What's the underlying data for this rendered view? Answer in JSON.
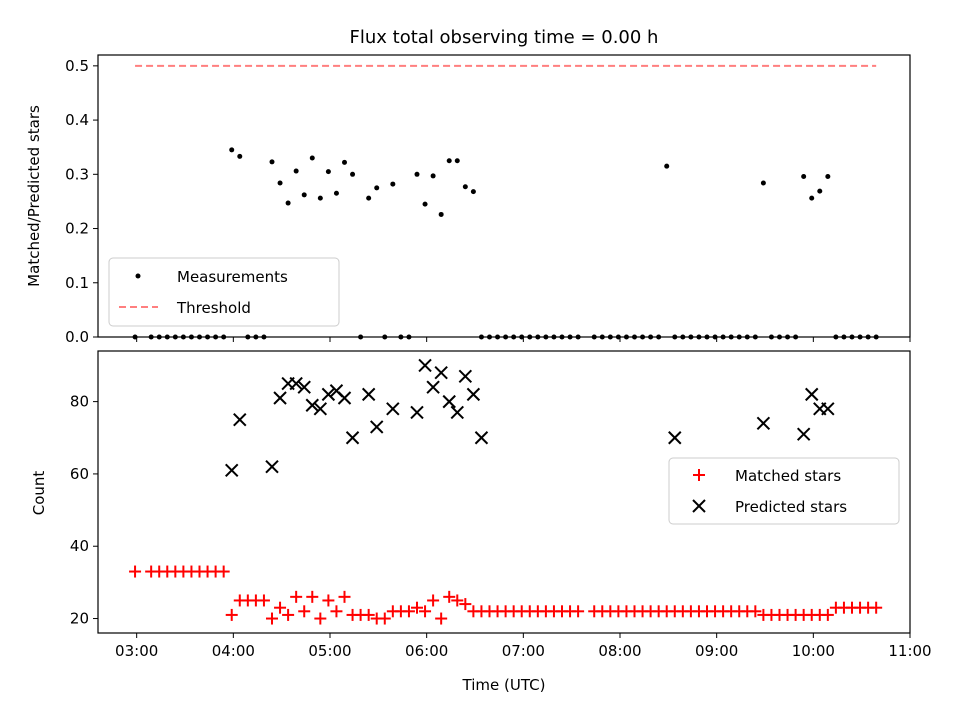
{
  "chart_data": [
    {
      "type": "scatter",
      "title": "Flux total observing time = 0.00 h",
      "xlabel": "",
      "ylabel": "Matched/Predicted stars",
      "xlim": [
        "02:36",
        "11:00"
      ],
      "ylim": [
        0,
        0.52
      ],
      "x_tick_labels": [
        "03:00",
        "04:00",
        "05:00",
        "06:00",
        "07:00",
        "08:00",
        "09:00",
        "10:00",
        "11:00"
      ],
      "y_ticks": [
        0.0,
        0.1,
        0.2,
        0.3,
        0.4,
        0.5
      ],
      "y_tick_labels": [
        "0.0",
        "0.1",
        "0.2",
        "0.3",
        "0.4",
        "0.5"
      ],
      "legend_position": "lower-left",
      "series": [
        {
          "name": "Measurements",
          "kind": "scatter",
          "color": "#000000",
          "x": [
            "02:59",
            "03:09",
            "03:14",
            "03:19",
            "03:24",
            "03:29",
            "03:34",
            "03:39",
            "03:44",
            "03:49",
            "03:54",
            "03:59",
            "04:04",
            "04:09",
            "04:14",
            "04:19",
            "04:24",
            "04:29",
            "04:34",
            "04:39",
            "04:44",
            "04:49",
            "04:54",
            "04:59",
            "05:04",
            "05:09",
            "05:14",
            "05:19",
            "05:24",
            "05:29",
            "05:34",
            "05:39",
            "05:44",
            "05:49",
            "05:54",
            "05:59",
            "06:04",
            "06:09",
            "06:14",
            "06:19",
            "06:24",
            "06:29",
            "06:34",
            "06:39",
            "06:44",
            "06:49",
            "06:54",
            "06:59",
            "07:04",
            "07:09",
            "07:14",
            "07:19",
            "07:24",
            "07:29",
            "07:34",
            "07:44",
            "07:49",
            "07:54",
            "07:59",
            "08:04",
            "08:09",
            "08:14",
            "08:19",
            "08:24",
            "08:29",
            "08:34",
            "08:39",
            "08:44",
            "08:49",
            "08:54",
            "08:59",
            "09:04",
            "09:09",
            "09:14",
            "09:19",
            "09:24",
            "09:29",
            "09:34",
            "09:39",
            "09:44",
            "09:49",
            "09:54",
            "09:59",
            "10:04",
            "10:09",
            "10:14",
            "10:19",
            "10:24",
            "10:29",
            "10:34",
            "10:39"
          ],
          "y": [
            0.0,
            0.0,
            0.0,
            0.0,
            0.0,
            0.0,
            0.0,
            0.0,
            0.0,
            0.0,
            0.0,
            0.345,
            0.333,
            0.0,
            0.0,
            0.0,
            0.323,
            0.284,
            0.247,
            0.306,
            0.262,
            0.33,
            0.256,
            0.305,
            0.265,
            0.322,
            0.3,
            0.0,
            0.256,
            0.275,
            0.0,
            0.282,
            0.0,
            0.0,
            0.3,
            0.245,
            0.297,
            0.226,
            0.325,
            0.325,
            0.277,
            0.268,
            0.0,
            0.0,
            0.0,
            0.0,
            0.0,
            0.0,
            0.0,
            0.0,
            0.0,
            0.0,
            0.0,
            0.0,
            0.0,
            0.0,
            0.0,
            0.0,
            0.0,
            0.0,
            0.0,
            0.0,
            0.0,
            0.0,
            0.315,
            0.0,
            0.0,
            0.0,
            0.0,
            0.0,
            0.0,
            0.0,
            0.0,
            0.0,
            0.0,
            0.0,
            0.284,
            0.0,
            0.0,
            0.0,
            0.0,
            0.296,
            0.256,
            0.269,
            0.296,
            0.0,
            0.0,
            0.0,
            0.0,
            0.0,
            0.0
          ]
        },
        {
          "name": "Threshold",
          "kind": "line",
          "style": "dashed",
          "color": "#ff7f7f",
          "x": [
            "02:59",
            "10:39"
          ],
          "y": [
            0.5,
            0.5
          ]
        }
      ]
    },
    {
      "type": "scatter",
      "title": "",
      "xlabel": "Time (UTC)",
      "ylabel": "Count",
      "xlim": [
        "02:36",
        "11:00"
      ],
      "ylim": [
        16,
        94
      ],
      "x_tick_labels": [
        "03:00",
        "04:00",
        "05:00",
        "06:00",
        "07:00",
        "08:00",
        "09:00",
        "10:00",
        "11:00"
      ],
      "y_ticks": [
        20,
        40,
        60,
        80
      ],
      "y_tick_labels": [
        "20",
        "40",
        "60",
        "80"
      ],
      "legend_position": "center-right",
      "series": [
        {
          "name": "Matched stars",
          "marker": "plus",
          "color": "#ff0000",
          "x": [
            "02:59",
            "03:09",
            "03:14",
            "03:19",
            "03:24",
            "03:29",
            "03:34",
            "03:39",
            "03:44",
            "03:49",
            "03:54",
            "03:59",
            "04:04",
            "04:09",
            "04:14",
            "04:19",
            "04:24",
            "04:29",
            "04:34",
            "04:39",
            "04:44",
            "04:49",
            "04:54",
            "04:59",
            "05:04",
            "05:09",
            "05:14",
            "05:19",
            "05:24",
            "05:29",
            "05:34",
            "05:39",
            "05:44",
            "05:49",
            "05:54",
            "05:59",
            "06:04",
            "06:09",
            "06:14",
            "06:19",
            "06:24",
            "06:29",
            "06:34",
            "06:39",
            "06:44",
            "06:49",
            "06:54",
            "06:59",
            "07:04",
            "07:09",
            "07:14",
            "07:19",
            "07:24",
            "07:29",
            "07:34",
            "07:44",
            "07:49",
            "07:54",
            "07:59",
            "08:04",
            "08:09",
            "08:14",
            "08:19",
            "08:24",
            "08:29",
            "08:34",
            "08:39",
            "08:44",
            "08:49",
            "08:54",
            "08:59",
            "09:04",
            "09:09",
            "09:14",
            "09:19",
            "09:24",
            "09:29",
            "09:34",
            "09:39",
            "09:44",
            "09:49",
            "09:54",
            "09:59",
            "10:04",
            "10:09",
            "10:14",
            "10:19",
            "10:24",
            "10:29",
            "10:34",
            "10:39"
          ],
          "y": [
            33,
            33,
            33,
            33,
            33,
            33,
            33,
            33,
            33,
            33,
            33,
            21,
            25,
            25,
            25,
            25,
            20,
            23,
            21,
            26,
            22,
            26,
            20,
            25,
            22,
            26,
            21,
            21,
            21,
            20,
            20,
            22,
            22,
            22,
            23,
            22,
            25,
            20,
            26,
            25,
            24,
            22,
            22,
            22,
            22,
            22,
            22,
            22,
            22,
            22,
            22,
            22,
            22,
            22,
            22,
            22,
            22,
            22,
            22,
            22,
            22,
            22,
            22,
            22,
            22,
            22,
            22,
            22,
            22,
            22,
            22,
            22,
            22,
            22,
            22,
            22,
            21,
            21,
            21,
            21,
            21,
            21,
            21,
            21,
            21,
            23,
            23,
            23,
            23,
            23,
            23
          ]
        },
        {
          "name": "Predicted stars",
          "marker": "cross",
          "color": "#000000",
          "x": [
            "03:59",
            "04:04",
            "04:24",
            "04:29",
            "04:34",
            "04:39",
            "04:44",
            "04:49",
            "04:54",
            "04:59",
            "05:04",
            "05:09",
            "05:14",
            "05:24",
            "05:29",
            "05:39",
            "05:54",
            "05:59",
            "06:04",
            "06:09",
            "06:14",
            "06:19",
            "06:24",
            "06:29",
            "06:34",
            "08:34",
            "09:29",
            "09:54",
            "09:59",
            "10:04",
            "10:09"
          ],
          "y": [
            61,
            75,
            62,
            81,
            85,
            85,
            84,
            79,
            78,
            82,
            83,
            81,
            70,
            82,
            73,
            78,
            77,
            90,
            84,
            88,
            80,
            77,
            87,
            82,
            70,
            70,
            74,
            71,
            82,
            78,
            78
          ]
        }
      ]
    }
  ]
}
